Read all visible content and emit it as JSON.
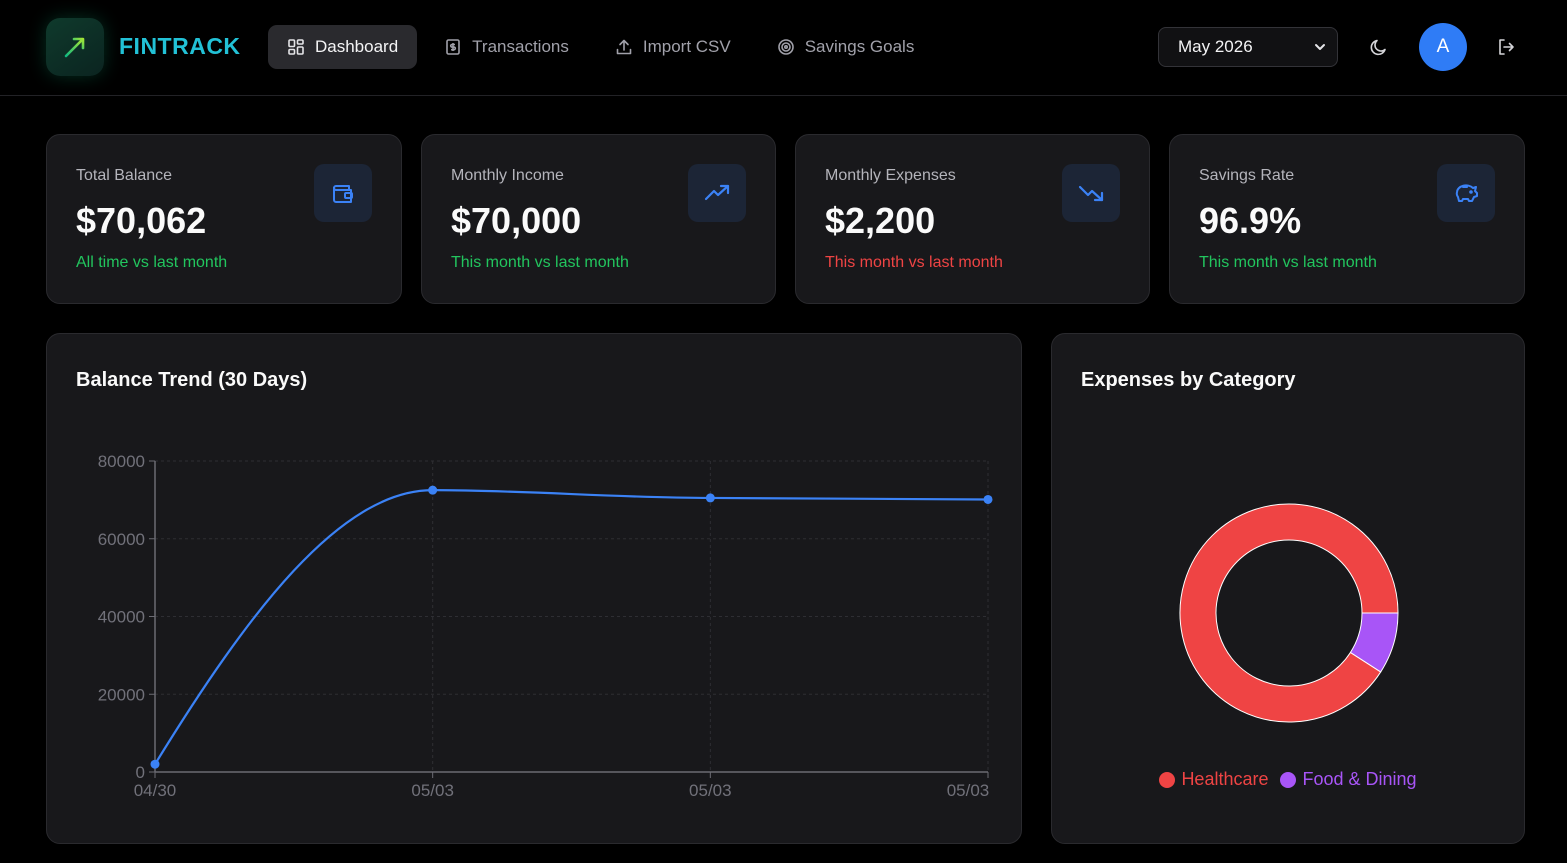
{
  "app": {
    "brand": "FINTRACK"
  },
  "nav": [
    {
      "label": "Dashboard",
      "icon": "dashboard-grid-icon",
      "active": true
    },
    {
      "label": "Transactions",
      "icon": "receipt-icon",
      "active": false
    },
    {
      "label": "Import CSV",
      "icon": "upload-icon",
      "active": false
    },
    {
      "label": "Savings Goals",
      "icon": "target-icon",
      "active": false
    }
  ],
  "header": {
    "month_selected": "May 2026",
    "avatar_initial": "A",
    "theme_icon": "moon-icon",
    "logout_icon": "logout-icon"
  },
  "stats": [
    {
      "label": "Total Balance",
      "value": "$70,062",
      "sub": "All time vs last month",
      "sub_color": "#22c55e",
      "icon": "wallet-icon"
    },
    {
      "label": "Monthly Income",
      "value": "$70,000",
      "sub": "This month vs last month",
      "sub_color": "#22c55e",
      "icon": "trending-up-icon"
    },
    {
      "label": "Monthly Expenses",
      "value": "$2,200",
      "sub": "This month vs last month",
      "sub_color": "#ef4444",
      "icon": "trending-down-icon"
    },
    {
      "label": "Savings Rate",
      "value": "96.9%",
      "sub": "This month vs last month",
      "sub_color": "#22c55e",
      "icon": "piggy-bank-icon"
    }
  ],
  "colors": {
    "accent": "#3b82f6",
    "positive": "#22c55e",
    "negative": "#ef4444",
    "healthcare": "#ef4444",
    "food": "#a855f7"
  },
  "chart_data": [
    {
      "type": "line",
      "title": "Balance Trend (30 Days)",
      "x": [
        "04/30",
        "05/03",
        "05/03",
        "05/03"
      ],
      "series": [
        {
          "values": [
            2000,
            72500,
            70500,
            70100
          ]
        }
      ],
      "ylim": [
        0,
        80000
      ],
      "yticks": [
        0,
        20000,
        40000,
        60000,
        80000
      ],
      "grid": true
    },
    {
      "type": "pie",
      "title": "Expenses by Category",
      "categories": [
        "Healthcare",
        "Food & Dining"
      ],
      "values": [
        2000,
        200
      ],
      "legend": "bottom"
    }
  ]
}
